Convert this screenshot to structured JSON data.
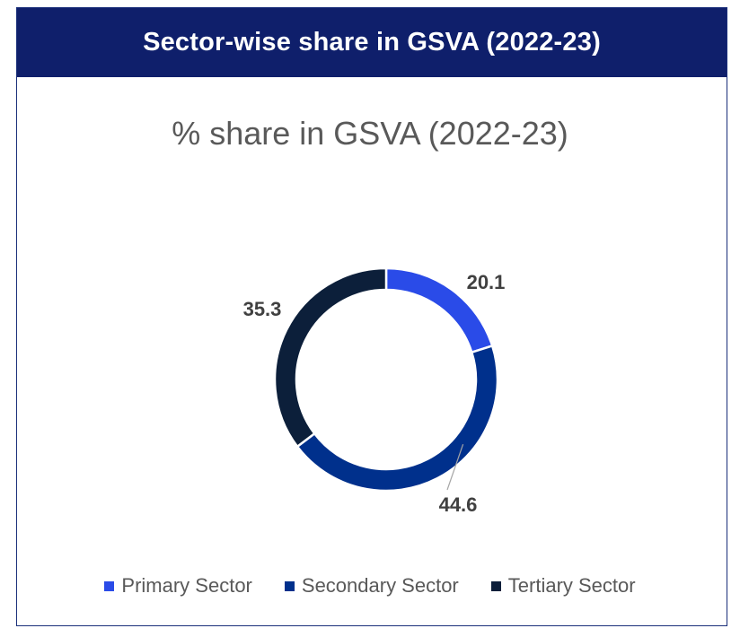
{
  "header": {
    "title": "Sector-wise share in GSVA (2022-23)"
  },
  "chart_data": {
    "type": "pie",
    "variant": "donut",
    "title": "% share in GSVA (2022-23)",
    "categories": [
      "Primary Sector",
      "Secondary Sector",
      "Tertiary Sector"
    ],
    "values": [
      20.1,
      44.6,
      35.3
    ],
    "data_labels": [
      "20.1",
      "44.6",
      "35.3"
    ],
    "colors": [
      "#2a4be8",
      "#00308c",
      "#0c1f3a"
    ],
    "legend": "bottom",
    "start_angle_deg": 0,
    "direction": "clockwise"
  }
}
